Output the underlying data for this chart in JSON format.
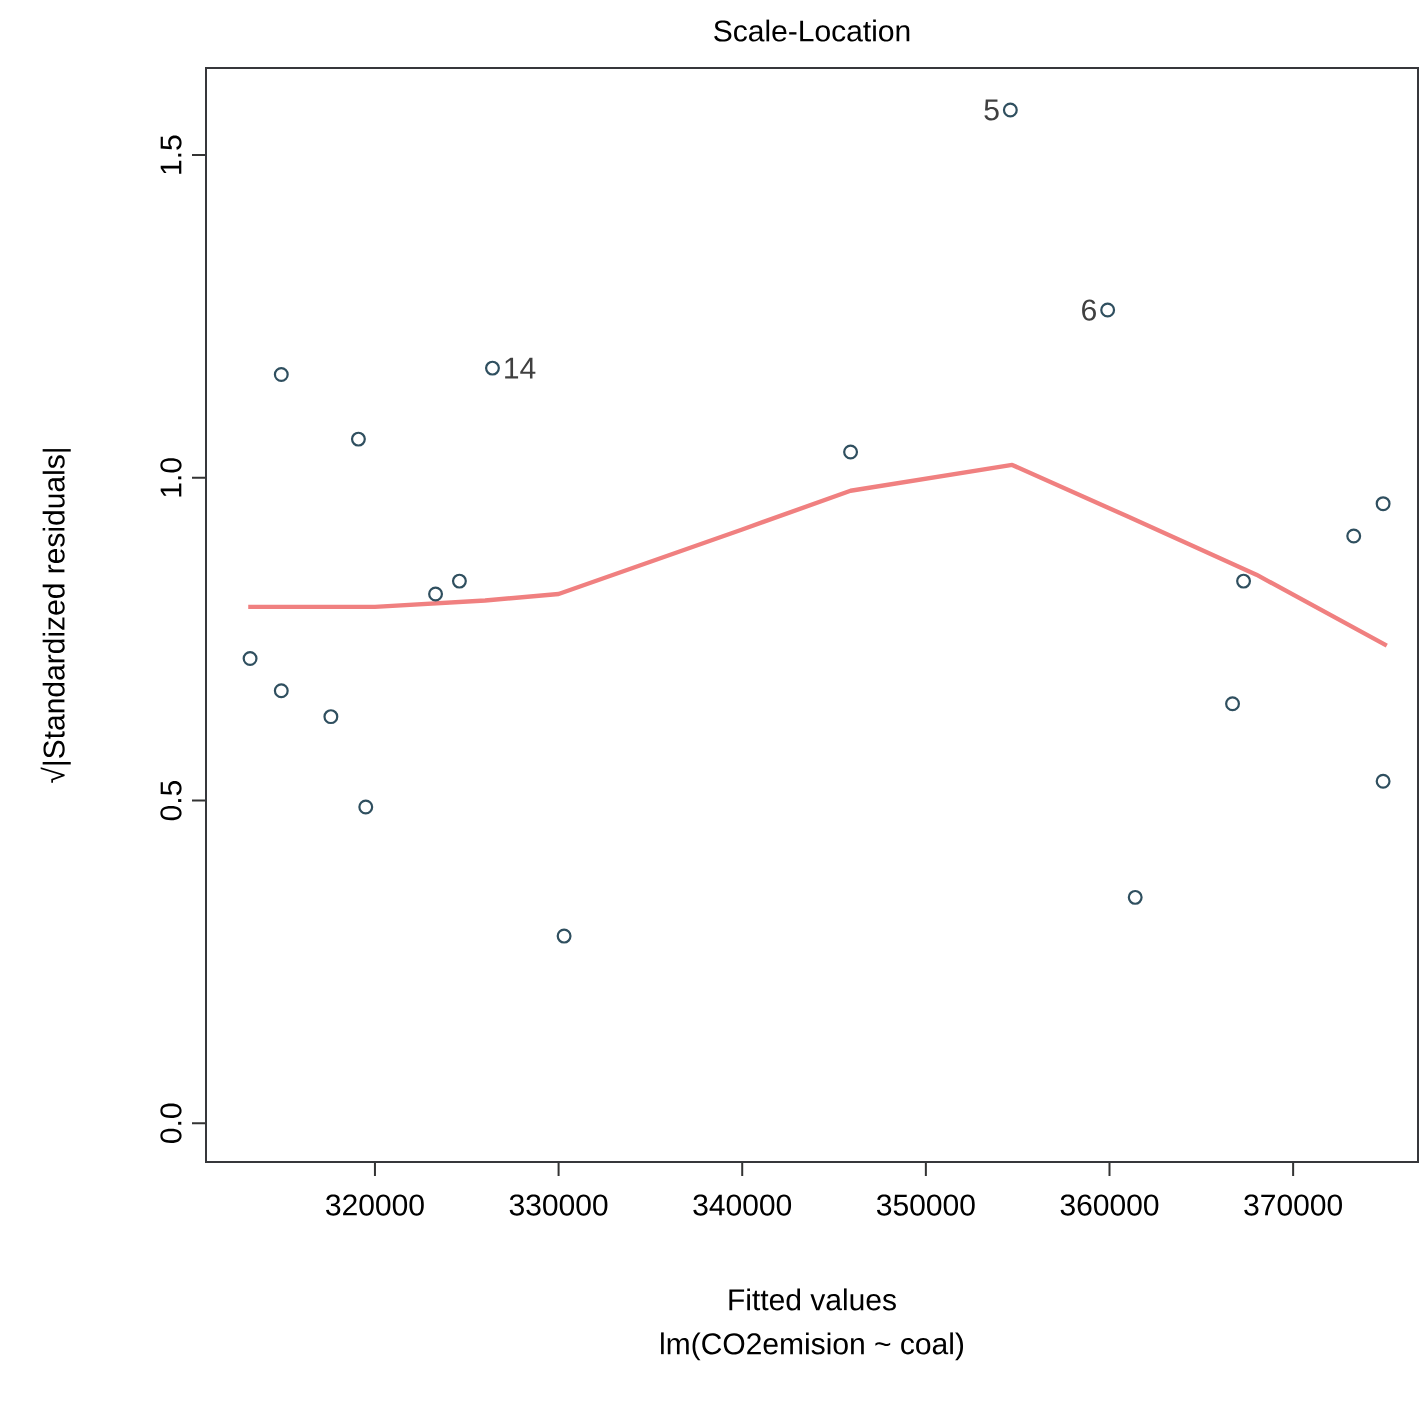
{
  "chart_data": {
    "type": "scatter",
    "title": "Scale-Location",
    "xlabel": "Fitted values",
    "ylabel": "√|Standardized residuals|",
    "marker": "circle",
    "xlim": [
      310800,
      376800
    ],
    "ylim": [
      -0.06,
      1.635
    ],
    "xticks": [
      320000,
      330000,
      340000,
      350000,
      360000,
      370000
    ],
    "yticks": [
      {
        "value": 0,
        "label": "0.0"
      },
      0.5,
      {
        "value": 1,
        "label": "1.0"
      },
      1.5
    ],
    "series": [
      {
        "color": "#2f4f5f",
        "x": [
          313200,
          314900,
          314900,
          317600,
          319100,
          319500,
          323300,
          324600,
          326400,
          330300,
          345900,
          354600,
          359900,
          361400,
          366700,
          367300,
          373300,
          374900,
          374900
        ],
        "values": [
          0.72,
          0.67,
          1.16,
          0.63,
          1.06,
          0.49,
          0.82,
          0.84,
          1.17,
          0.29,
          1.04,
          1.57,
          1.26,
          0.35,
          0.65,
          0.84,
          0.91,
          0.96,
          0.53
        ]
      },
      {
        "type": "line",
        "color": "#f08080",
        "marker": "none",
        "x": [
          313100,
          320000,
          326000,
          330000,
          335000,
          340000,
          345900,
          354700,
          361000,
          368000,
          375100
        ],
        "values": [
          0.8,
          0.8,
          0.81,
          0.82,
          0.87,
          0.92,
          0.98,
          1.02,
          0.94,
          0.85,
          0.74
        ]
      }
    ],
    "annotations": [
      {
        "text": "14",
        "x": 326400,
        "y": 1.17
      },
      {
        "text": "5",
        "x": 354600,
        "y": 1.57
      },
      {
        "text": "6",
        "x": 359900,
        "y": 1.26
      },
      "lm(CO2emision ~ coal)"
    ]
  }
}
